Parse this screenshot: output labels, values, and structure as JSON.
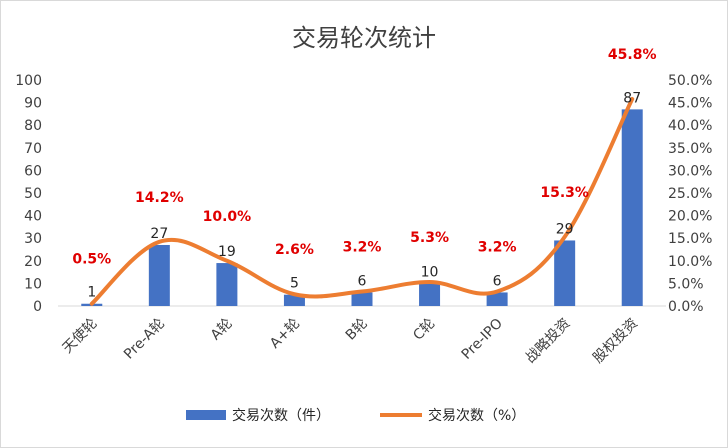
{
  "colors": {
    "bar": "#4472C4",
    "line": "#ED7D31",
    "pct_label": "#E00000",
    "text": "#404040",
    "border": "#D9D9D9"
  },
  "chart_data": {
    "type": "bar",
    "title": "交易轮次统计",
    "categories": [
      "天使轮",
      "Pre-A轮",
      "A轮",
      "A+轮",
      "B轮",
      "C轮",
      "Pre-IPO",
      "战略投资",
      "股权投资"
    ],
    "series": [
      {
        "name": "交易次数（件）",
        "type": "bar",
        "axis": "left",
        "values": [
          1,
          27,
          19,
          5,
          6,
          10,
          6,
          29,
          87
        ],
        "labels": [
          "1",
          "27",
          "19",
          "5",
          "6",
          "10",
          "6",
          "29",
          "87"
        ]
      },
      {
        "name": "交易次数（%）",
        "type": "line",
        "axis": "right",
        "values": [
          0.5,
          14.2,
          10.0,
          2.6,
          3.2,
          5.3,
          3.2,
          15.3,
          45.8
        ],
        "labels": [
          "0.5%",
          "14.2%",
          "10.0%",
          "2.6%",
          "3.2%",
          "5.3%",
          "3.2%",
          "15.3%",
          "45.8%"
        ]
      }
    ],
    "y_left": {
      "min": 0,
      "max": 100,
      "step": 10,
      "ticks": [
        "0",
        "10",
        "20",
        "30",
        "40",
        "50",
        "60",
        "70",
        "80",
        "90",
        "100"
      ]
    },
    "y_right": {
      "min": 0,
      "max": 50,
      "step": 5,
      "ticks": [
        "0.0%",
        "5.0%",
        "10.0%",
        "15.0%",
        "20.0%",
        "25.0%",
        "30.0%",
        "35.0%",
        "40.0%",
        "45.0%",
        "50.0%"
      ]
    },
    "grid": false,
    "legend_position": "bottom"
  }
}
